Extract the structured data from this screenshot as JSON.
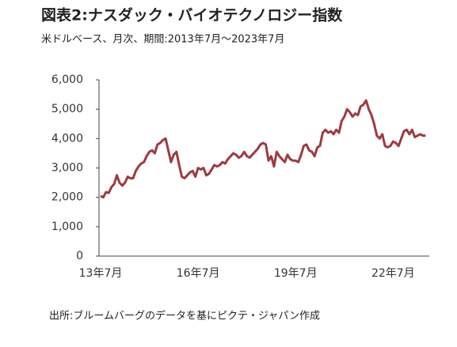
{
  "chart_data": {
    "type": "line",
    "title": "図表2:ナスダック・バイオテクノロジー指数",
    "subtitle": "米ドルベース、月次、期間:2013年7月～2023年7月",
    "source": "出所:ブルームバーグのデータを基にピクテ・ジャパン作成",
    "categories": [
      "13年7月",
      null,
      null,
      null,
      null,
      null,
      null,
      null,
      null,
      null,
      null,
      null,
      null,
      null,
      null,
      null,
      null,
      null,
      null,
      null,
      null,
      null,
      null,
      null,
      null,
      null,
      null,
      null,
      null,
      null,
      null,
      null,
      null,
      null,
      null,
      null,
      "16年7月",
      null,
      null,
      null,
      null,
      null,
      null,
      null,
      null,
      null,
      null,
      null,
      null,
      null,
      null,
      null,
      null,
      null,
      null,
      null,
      null,
      null,
      null,
      null,
      null,
      null,
      null,
      null,
      null,
      null,
      null,
      null,
      null,
      null,
      null,
      null,
      "19年7月",
      null,
      null,
      null,
      null,
      null,
      null,
      null,
      null,
      null,
      null,
      null,
      null,
      null,
      null,
      null,
      null,
      null,
      null,
      null,
      null,
      null,
      null,
      null,
      null,
      null,
      null,
      null,
      null,
      null,
      null,
      null,
      null,
      null,
      null,
      null,
      "22年7月",
      null,
      null,
      null,
      null,
      null,
      null,
      null,
      null,
      null,
      null,
      null,
      null
    ],
    "series": [
      {
        "color": "#9e3a40",
        "values": [
          2050,
          2000,
          2180,
          2150,
          2350,
          2450,
          2750,
          2500,
          2400,
          2500,
          2700,
          2650,
          2650,
          2900,
          3050,
          3150,
          3200,
          3400,
          3550,
          3600,
          3500,
          3800,
          3850,
          3950,
          4000,
          3600,
          3200,
          3450,
          3550,
          3100,
          2700,
          2650,
          2750,
          2850,
          2900,
          2700,
          3000,
          2950,
          3000,
          2750,
          2800,
          2950,
          3100,
          3050,
          3100,
          3200,
          3150,
          3300,
          3400,
          3500,
          3450,
          3350,
          3400,
          3550,
          3400,
          3350,
          3450,
          3550,
          3650,
          3800,
          3850,
          3800,
          3250,
          3400,
          3050,
          3550,
          3400,
          3300,
          3200,
          3450,
          3300,
          3250,
          3250,
          3200,
          3450,
          3750,
          3800,
          3600,
          3550,
          3400,
          3700,
          3750,
          4200,
          4300,
          4200,
          4250,
          4150,
          4300,
          4200,
          4600,
          4750,
          5000,
          4900,
          4750,
          4850,
          4800,
          5100,
          5150,
          5300,
          5000,
          4800,
          4500,
          4100,
          4000,
          4150,
          3750,
          3700,
          3750,
          3900,
          3850,
          3750,
          4000,
          4250,
          4300,
          4150,
          4300,
          4050,
          4100,
          4150,
          4100,
          4100
        ]
      }
    ],
    "ylim": [
      0,
      6000
    ],
    "yticks": [
      0,
      {
        "value": 1000,
        "label": "1,000"
      },
      {
        "value": 2000,
        "label": "2,000"
      },
      {
        "value": 3000,
        "label": "3,000"
      },
      {
        "value": 4000,
        "label": "4,000"
      },
      {
        "value": 5000,
        "label": "5,000"
      },
      {
        "value": 6000,
        "label": "6,000"
      }
    ]
  }
}
